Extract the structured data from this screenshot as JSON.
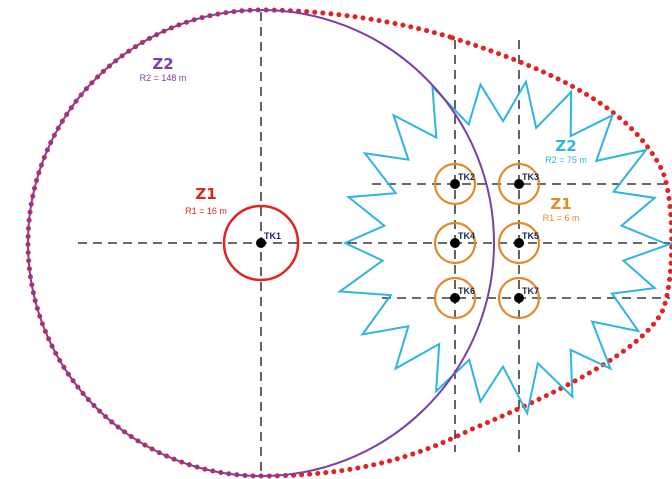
{
  "colors": {
    "background": "#ffffff",
    "z2_circle": "#7b3fa6",
    "z2_star": "#2eb4e0",
    "z1_central": "#e02424",
    "z1_wells": "#e08a2a",
    "outer_boundary": "#e02424",
    "well_point": "#000000",
    "well_label": "#1a2a5a",
    "axis": "#111111"
  },
  "zones": {
    "left_z2": {
      "title": "Z2",
      "radius": "R2 = 148 m"
    },
    "left_z1": {
      "title": "Z1",
      "radius": "R1 = 16 m"
    },
    "right_z2": {
      "title": "Z2",
      "radius": "R2 = 75 m"
    },
    "right_z1": {
      "title": "Z1",
      "radius": "R1 = 6 m"
    }
  },
  "wells": [
    "TK1",
    "TK2",
    "TK3",
    "TK4",
    "TK5",
    "TK6",
    "TK7"
  ],
  "icons": {
    "well": "filled-dot"
  }
}
